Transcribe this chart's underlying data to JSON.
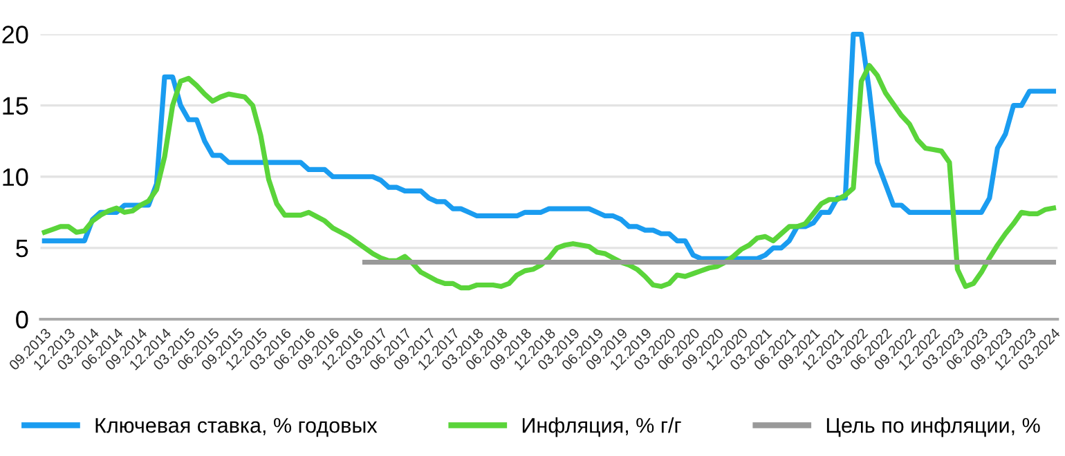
{
  "chart_data": {
    "type": "line",
    "categories": [
      "09.2013",
      null,
      null,
      "12.2013",
      null,
      null,
      "03.2014",
      null,
      null,
      "06.2014",
      null,
      null,
      "09.2014",
      null,
      null,
      "12.2014",
      null,
      null,
      "03.2015",
      null,
      null,
      "06.2015",
      null,
      null,
      "09.2015",
      null,
      null,
      "12.2015",
      null,
      null,
      "03.2016",
      null,
      null,
      "06.2016",
      null,
      null,
      "09.2016",
      null,
      null,
      "12.2016",
      null,
      null,
      "03.2017",
      null,
      null,
      "06.2017",
      null,
      null,
      "09.2017",
      null,
      null,
      "12.2017",
      null,
      null,
      "03.2018",
      null,
      null,
      "06.2018",
      null,
      null,
      "09.2018",
      null,
      null,
      "12.2018",
      null,
      null,
      "03.2019",
      null,
      null,
      "06.2019",
      null,
      null,
      "09.2019",
      null,
      null,
      "12.2019",
      null,
      null,
      "03.2020",
      null,
      null,
      "06.2020",
      null,
      null,
      "09.2020",
      null,
      null,
      "12.2020",
      null,
      null,
      "03.2021",
      null,
      null,
      "06.2021",
      null,
      null,
      "09.2021",
      null,
      null,
      "12.2021",
      null,
      null,
      "03.2022",
      null,
      null,
      "06.2022",
      null,
      null,
      "09.2022",
      null,
      null,
      "12.2022",
      null,
      null,
      "03.2023",
      null,
      null,
      "06.2023",
      null,
      null,
      "09.2023",
      null,
      null,
      "12.2023",
      null,
      null,
      "03.2024"
    ],
    "series": [
      {
        "name": "Ключевая ставка, % годовых",
        "color": "#1a9cf0",
        "values": [
          5.5,
          5.5,
          5.5,
          5.5,
          5.5,
          5.5,
          7,
          7.5,
          7.5,
          7.5,
          8,
          8,
          8,
          8,
          9.5,
          17,
          17,
          15,
          14,
          14,
          12.5,
          11.5,
          11.5,
          11,
          11,
          11,
          11,
          11,
          11,
          11,
          11,
          11,
          11,
          10.5,
          10.5,
          10.5,
          10,
          10,
          10,
          10,
          10,
          10,
          9.75,
          9.25,
          9.25,
          9,
          9,
          9,
          8.5,
          8.25,
          8.25,
          7.75,
          7.75,
          7.5,
          7.25,
          7.25,
          7.25,
          7.25,
          7.25,
          7.25,
          7.5,
          7.5,
          7.5,
          7.75,
          7.75,
          7.75,
          7.75,
          7.75,
          7.75,
          7.5,
          7.25,
          7.25,
          7,
          6.5,
          6.5,
          6.25,
          6.25,
          6,
          6,
          5.5,
          5.5,
          4.5,
          4.25,
          4.25,
          4.25,
          4.25,
          4.25,
          4.25,
          4.25,
          4.25,
          4.5,
          5,
          5,
          5.5,
          6.5,
          6.5,
          6.75,
          7.5,
          7.5,
          8.5,
          8.5,
          20,
          20,
          16,
          11,
          9.5,
          8,
          8,
          7.5,
          7.5,
          7.5,
          7.5,
          7.5,
          7.5,
          7.5,
          7.5,
          7.5,
          7.5,
          8.5,
          12,
          13,
          15,
          15,
          16,
          16,
          16,
          16
        ]
      },
      {
        "name": "Инфляция, % г/г",
        "color": "#5ad43a",
        "values": [
          6.1,
          6.3,
          6.5,
          6.5,
          6.1,
          6.2,
          6.9,
          7.3,
          7.6,
          7.8,
          7.5,
          7.6,
          8.0,
          8.3,
          9.1,
          11.4,
          15.0,
          16.7,
          16.9,
          16.4,
          15.8,
          15.3,
          15.6,
          15.8,
          15.7,
          15.6,
          15.0,
          12.9,
          9.8,
          8.1,
          7.3,
          7.3,
          7.3,
          7.5,
          7.2,
          6.9,
          6.4,
          6.1,
          5.8,
          5.4,
          5.0,
          4.6,
          4.3,
          4.1,
          4.1,
          4.4,
          3.9,
          3.3,
          3.0,
          2.7,
          2.5,
          2.5,
          2.2,
          2.2,
          2.4,
          2.4,
          2.4,
          2.3,
          2.5,
          3.1,
          3.4,
          3.5,
          3.8,
          4.3,
          5.0,
          5.2,
          5.3,
          5.2,
          5.1,
          4.7,
          4.6,
          4.3,
          4.0,
          3.8,
          3.5,
          3.0,
          2.4,
          2.3,
          2.5,
          3.1,
          3.0,
          3.2,
          3.4,
          3.6,
          3.7,
          4.0,
          4.4,
          4.9,
          5.2,
          5.7,
          5.8,
          5.5,
          6.0,
          6.5,
          6.5,
          6.7,
          7.4,
          8.1,
          8.4,
          8.4,
          8.7,
          9.2,
          16.7,
          17.8,
          17.1,
          15.9,
          15.1,
          14.3,
          13.7,
          12.6,
          12.0,
          11.9,
          11.8,
          11.0,
          3.5,
          2.3,
          2.5,
          3.3,
          4.3,
          5.2,
          6.0,
          6.7,
          7.5,
          7.4,
          7.4,
          7.7,
          7.8
        ]
      },
      {
        "name": "Цель по инфляции, %",
        "color": "#999999",
        "values": [
          null,
          null,
          null,
          null,
          null,
          null,
          null,
          null,
          null,
          null,
          null,
          null,
          null,
          null,
          null,
          null,
          null,
          null,
          null,
          null,
          null,
          null,
          null,
          null,
          null,
          null,
          null,
          null,
          null,
          null,
          null,
          null,
          null,
          null,
          null,
          null,
          null,
          null,
          null,
          null,
          4,
          4,
          4,
          4,
          4,
          4,
          4,
          4,
          4,
          4,
          4,
          4,
          4,
          4,
          4,
          4,
          4,
          4,
          4,
          4,
          4,
          4,
          4,
          4,
          4,
          4,
          4,
          4,
          4,
          4,
          4,
          4,
          4,
          4,
          4,
          4,
          4,
          4,
          4,
          4,
          4,
          4,
          4,
          4,
          4,
          4,
          4,
          4,
          4,
          4,
          4,
          4,
          4,
          4,
          4,
          4,
          4,
          4,
          4,
          4,
          4,
          4,
          4,
          4,
          4,
          4,
          4,
          4,
          4,
          4,
          4,
          4,
          4,
          4,
          4,
          4,
          4,
          4,
          4,
          4,
          4,
          4,
          4,
          4,
          4,
          4,
          4
        ]
      }
    ],
    "ylim": [
      0,
      20
    ],
    "yticks": [
      0,
      5,
      10,
      15,
      20
    ],
    "grid": "y",
    "legend": "bottom",
    "marker": "none",
    "line_style": "solid"
  }
}
